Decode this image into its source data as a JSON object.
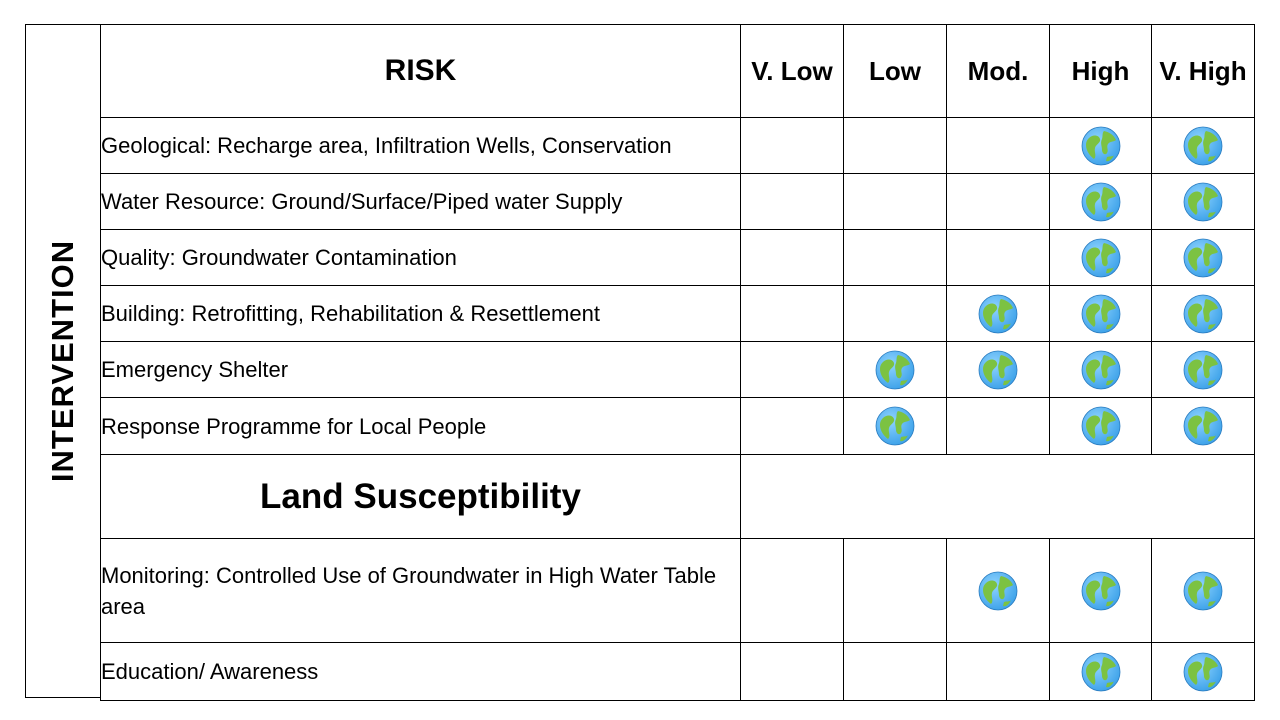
{
  "side_label": "INTERVENTION",
  "header": {
    "risk": "RISK",
    "levels": [
      "V. Low",
      "Low",
      "Mod.",
      "High",
      "V. High"
    ]
  },
  "risk_rows": [
    {
      "label": "Geological: Recharge area, Infiltration Wells, Conservation",
      "marks": [
        false,
        false,
        false,
        true,
        true
      ]
    },
    {
      "label": "Water Resource: Ground/Surface/Piped  water Supply",
      "marks": [
        false,
        false,
        false,
        true,
        true
      ]
    },
    {
      "label": "Quality: Groundwater Contamination",
      "marks": [
        false,
        false,
        false,
        true,
        true
      ]
    },
    {
      "label": "Building: Retrofitting, Rehabilitation & Resettlement",
      "marks": [
        false,
        false,
        true,
        true,
        true
      ]
    },
    {
      "label": "Emergency Shelter",
      "marks": [
        false,
        true,
        true,
        true,
        true
      ]
    },
    {
      "label": "Response Programme for Local People",
      "marks": [
        false,
        true,
        false,
        true,
        true
      ]
    }
  ],
  "land_section": {
    "title": "Land Susceptibility",
    "rows": [
      {
        "label": "Monitoring: Controlled Use of Groundwater in High Water Table area",
        "marks": [
          false,
          false,
          true,
          true,
          true
        ]
      },
      {
        "label": "Education/ Awareness",
        "marks": [
          false,
          false,
          false,
          true,
          true
        ]
      }
    ]
  },
  "marker_icon": "globe-icon",
  "colors": {
    "ocean": "#3aa0e8",
    "land": "#7cc242",
    "border": "#000000"
  }
}
